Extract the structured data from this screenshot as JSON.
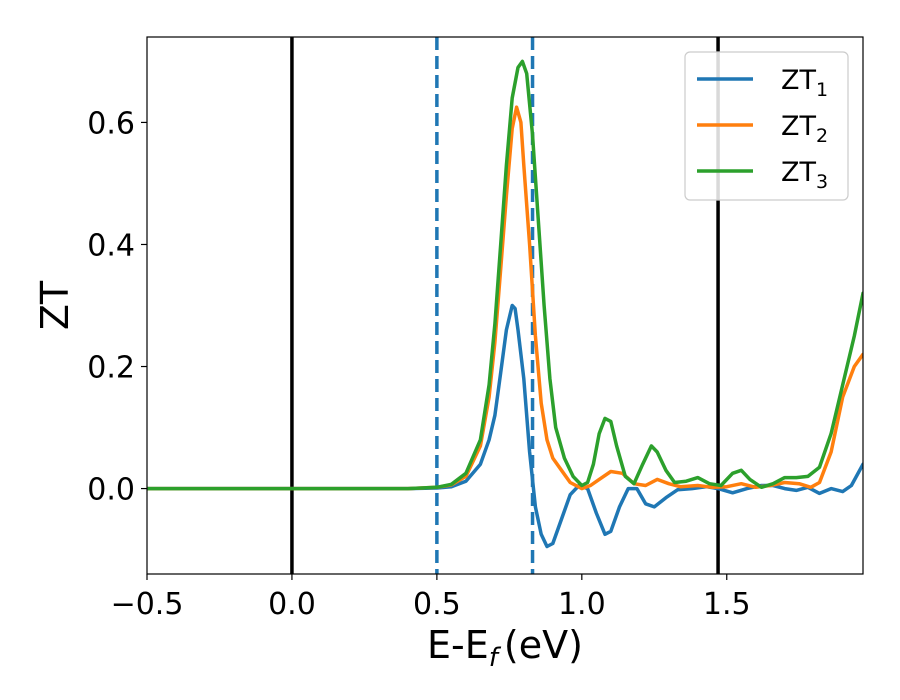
{
  "chart_data": {
    "type": "line",
    "xlabel": "E-E",
    "xlabel_sub": "f",
    "xlabel_unit": "(eV)",
    "ylabel": "ZT",
    "xlim": [
      -0.5,
      1.97
    ],
    "ylim": [
      -0.14,
      0.74
    ],
    "grid": false,
    "legend_position": "top-right",
    "xticks": [
      {
        "value": -0.5,
        "label": "−0.5"
      },
      {
        "value": 0.0,
        "label": "0.0"
      },
      {
        "value": 0.5,
        "label": "0.5"
      },
      {
        "value": 1.0,
        "label": "1.0"
      },
      {
        "value": 1.5,
        "label": "1.5"
      }
    ],
    "yticks": [
      {
        "value": 0.0,
        "label": "0.0"
      },
      {
        "value": 0.2,
        "label": "0.2"
      },
      {
        "value": 0.4,
        "label": "0.4"
      },
      {
        "value": 0.6,
        "label": "0.6"
      }
    ],
    "vlines": [
      {
        "x": 0.0,
        "style": "solid",
        "color": "#000000"
      },
      {
        "x": 1.47,
        "style": "solid",
        "color": "#000000"
      },
      {
        "x": 0.5,
        "style": "dashed",
        "color": "#1f77b4"
      },
      {
        "x": 0.83,
        "style": "dashed",
        "color": "#1f77b4"
      }
    ],
    "series": [
      {
        "name": "ZT",
        "name_sub": "1",
        "color": "#1f77b4",
        "points": [
          [
            -0.5,
            0.0
          ],
          [
            0.4,
            0.0
          ],
          [
            0.5,
            0.001
          ],
          [
            0.55,
            0.003
          ],
          [
            0.6,
            0.012
          ],
          [
            0.65,
            0.04
          ],
          [
            0.68,
            0.08
          ],
          [
            0.7,
            0.12
          ],
          [
            0.72,
            0.19
          ],
          [
            0.74,
            0.26
          ],
          [
            0.76,
            0.3
          ],
          [
            0.77,
            0.295
          ],
          [
            0.78,
            0.26
          ],
          [
            0.8,
            0.18
          ],
          [
            0.82,
            0.06
          ],
          [
            0.84,
            -0.03
          ],
          [
            0.86,
            -0.075
          ],
          [
            0.88,
            -0.095
          ],
          [
            0.9,
            -0.09
          ],
          [
            0.93,
            -0.05
          ],
          [
            0.96,
            -0.01
          ],
          [
            0.99,
            0.005
          ],
          [
            1.02,
            0.0
          ],
          [
            1.05,
            -0.04
          ],
          [
            1.08,
            -0.075
          ],
          [
            1.1,
            -0.07
          ],
          [
            1.13,
            -0.03
          ],
          [
            1.16,
            0.0
          ],
          [
            1.19,
            0.0
          ],
          [
            1.22,
            -0.025
          ],
          [
            1.25,
            -0.03
          ],
          [
            1.29,
            -0.015
          ],
          [
            1.33,
            -0.002
          ],
          [
            1.38,
            0.0
          ],
          [
            1.43,
            0.003
          ],
          [
            1.47,
            0.0
          ],
          [
            1.52,
            -0.007
          ],
          [
            1.57,
            0.0
          ],
          [
            1.62,
            0.005
          ],
          [
            1.66,
            0.005
          ],
          [
            1.7,
            0.0
          ],
          [
            1.74,
            -0.003
          ],
          [
            1.78,
            0.002
          ],
          [
            1.82,
            -0.008
          ],
          [
            1.86,
            0.0
          ],
          [
            1.9,
            -0.005
          ],
          [
            1.93,
            0.005
          ],
          [
            1.97,
            0.04
          ]
        ]
      },
      {
        "name": "ZT",
        "name_sub": "2",
        "color": "#ff7f0e",
        "points": [
          [
            -0.5,
            0.0
          ],
          [
            0.4,
            0.0
          ],
          [
            0.5,
            0.002
          ],
          [
            0.55,
            0.006
          ],
          [
            0.6,
            0.02
          ],
          [
            0.65,
            0.07
          ],
          [
            0.68,
            0.15
          ],
          [
            0.7,
            0.24
          ],
          [
            0.72,
            0.36
          ],
          [
            0.74,
            0.48
          ],
          [
            0.76,
            0.59
          ],
          [
            0.775,
            0.625
          ],
          [
            0.79,
            0.6
          ],
          [
            0.8,
            0.53
          ],
          [
            0.82,
            0.4
          ],
          [
            0.84,
            0.25
          ],
          [
            0.86,
            0.14
          ],
          [
            0.88,
            0.08
          ],
          [
            0.9,
            0.05
          ],
          [
            0.93,
            0.03
          ],
          [
            0.96,
            0.01
          ],
          [
            1.0,
            0.0
          ],
          [
            1.03,
            0.005
          ],
          [
            1.06,
            0.015
          ],
          [
            1.1,
            0.028
          ],
          [
            1.14,
            0.025
          ],
          [
            1.18,
            0.008
          ],
          [
            1.22,
            0.005
          ],
          [
            1.26,
            0.015
          ],
          [
            1.3,
            0.008
          ],
          [
            1.34,
            0.003
          ],
          [
            1.4,
            0.005
          ],
          [
            1.45,
            0.002
          ],
          [
            1.5,
            0.003
          ],
          [
            1.55,
            0.008
          ],
          [
            1.6,
            0.002
          ],
          [
            1.65,
            0.005
          ],
          [
            1.7,
            0.01
          ],
          [
            1.75,
            0.008
          ],
          [
            1.79,
            0.002
          ],
          [
            1.82,
            0.01
          ],
          [
            1.86,
            0.06
          ],
          [
            1.9,
            0.15
          ],
          [
            1.94,
            0.2
          ],
          [
            1.97,
            0.22
          ]
        ]
      },
      {
        "name": "ZT",
        "name_sub": "3",
        "color": "#2ca02c",
        "points": [
          [
            -0.5,
            0.0
          ],
          [
            0.4,
            0.0
          ],
          [
            0.5,
            0.002
          ],
          [
            0.55,
            0.007
          ],
          [
            0.6,
            0.025
          ],
          [
            0.65,
            0.08
          ],
          [
            0.68,
            0.17
          ],
          [
            0.7,
            0.27
          ],
          [
            0.72,
            0.4
          ],
          [
            0.74,
            0.53
          ],
          [
            0.76,
            0.64
          ],
          [
            0.78,
            0.69
          ],
          [
            0.795,
            0.7
          ],
          [
            0.81,
            0.68
          ],
          [
            0.83,
            0.58
          ],
          [
            0.85,
            0.44
          ],
          [
            0.87,
            0.3
          ],
          [
            0.89,
            0.18
          ],
          [
            0.91,
            0.1
          ],
          [
            0.94,
            0.05
          ],
          [
            0.97,
            0.02
          ],
          [
            1.0,
            0.005
          ],
          [
            1.02,
            0.01
          ],
          [
            1.04,
            0.04
          ],
          [
            1.06,
            0.09
          ],
          [
            1.08,
            0.115
          ],
          [
            1.1,
            0.11
          ],
          [
            1.12,
            0.07
          ],
          [
            1.15,
            0.02
          ],
          [
            1.18,
            0.008
          ],
          [
            1.21,
            0.04
          ],
          [
            1.24,
            0.07
          ],
          [
            1.26,
            0.06
          ],
          [
            1.29,
            0.03
          ],
          [
            1.32,
            0.01
          ],
          [
            1.36,
            0.012
          ],
          [
            1.4,
            0.018
          ],
          [
            1.44,
            0.008
          ],
          [
            1.48,
            0.005
          ],
          [
            1.52,
            0.025
          ],
          [
            1.55,
            0.03
          ],
          [
            1.58,
            0.015
          ],
          [
            1.62,
            0.002
          ],
          [
            1.66,
            0.008
          ],
          [
            1.7,
            0.018
          ],
          [
            1.74,
            0.018
          ],
          [
            1.78,
            0.02
          ],
          [
            1.82,
            0.035
          ],
          [
            1.86,
            0.09
          ],
          [
            1.9,
            0.17
          ],
          [
            1.94,
            0.25
          ],
          [
            1.97,
            0.32
          ]
        ]
      }
    ]
  }
}
